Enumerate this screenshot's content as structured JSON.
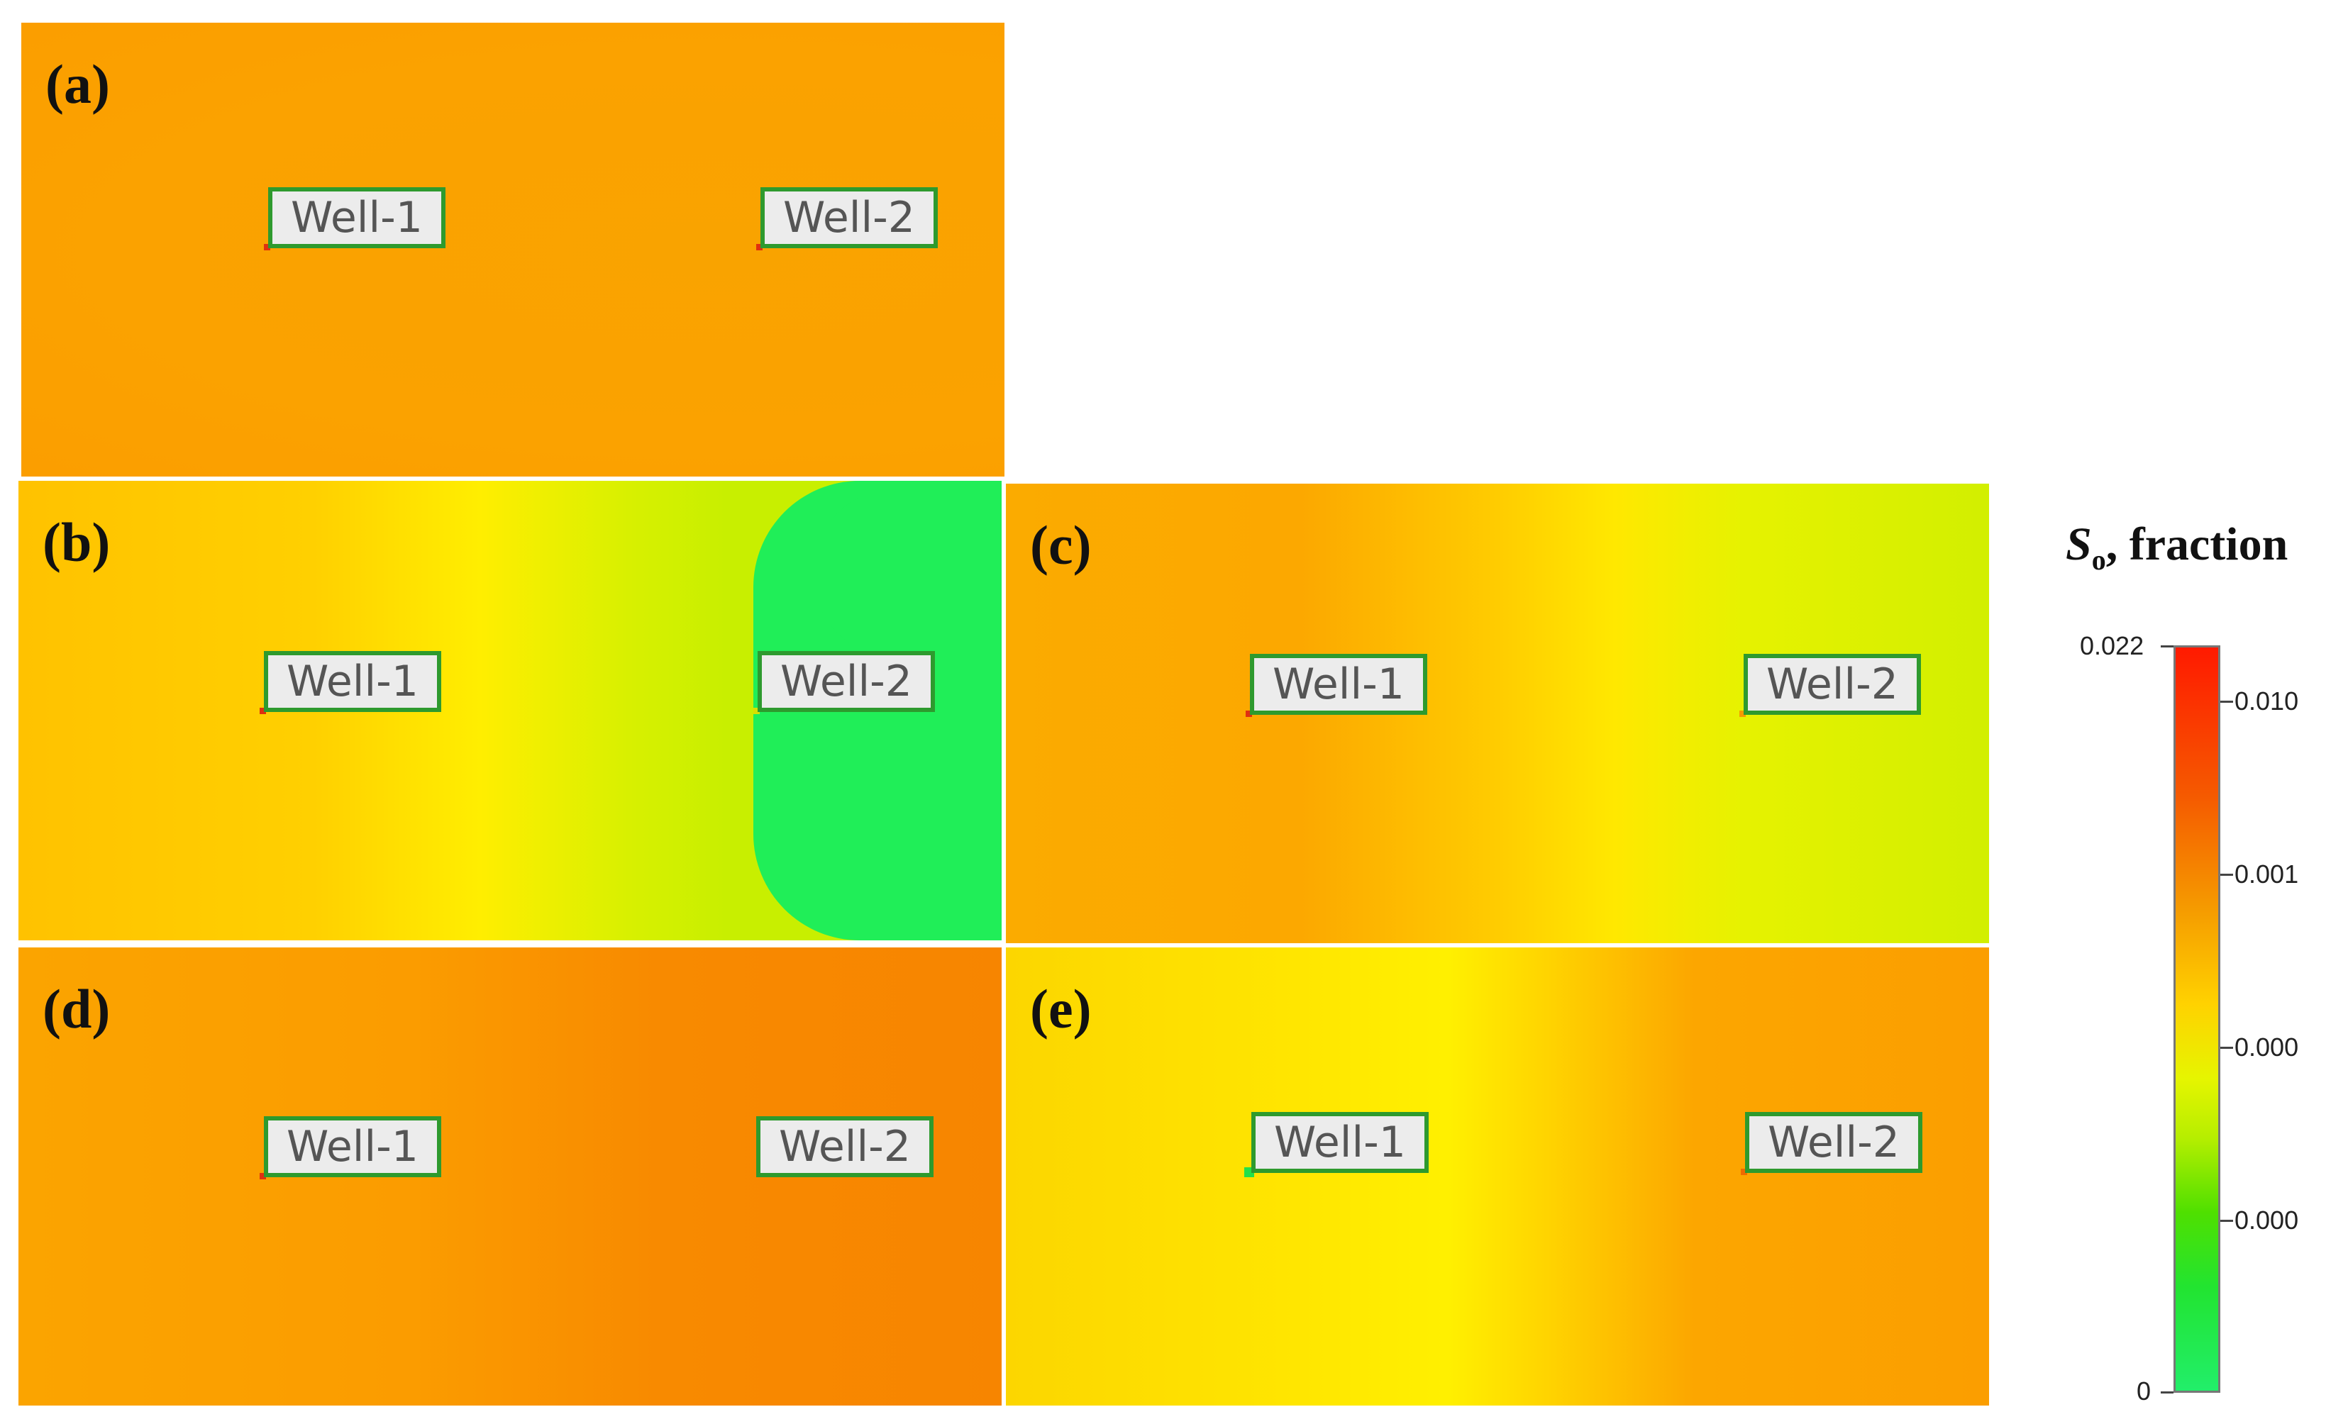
{
  "panels": [
    {
      "label": "(a)",
      "wells": [
        "Well-1",
        "Well-2"
      ]
    },
    {
      "label": "(b)",
      "wells": [
        "Well-1",
        "Well-2"
      ]
    },
    {
      "label": "(c)",
      "wells": [
        "Well-1",
        "Well-2"
      ]
    },
    {
      "label": "(d)",
      "wells": [
        "Well-1",
        "Well-2"
      ]
    },
    {
      "label": "(e)",
      "wells": [
        "Well-1",
        "Well-2"
      ]
    }
  ],
  "legend": {
    "title_symbol": "S",
    "title_subscript": "o",
    "title_rest": ", fraction",
    "left_ticks": [
      "0.022",
      "0"
    ],
    "right_ticks": [
      "0.010",
      "0.001",
      "0.000",
      "0.000"
    ]
  },
  "colors": {
    "orange": "#fba000",
    "yellow": "#ffe800",
    "green": "#1fee5a",
    "well_box_border": "#2e9a2e"
  }
}
